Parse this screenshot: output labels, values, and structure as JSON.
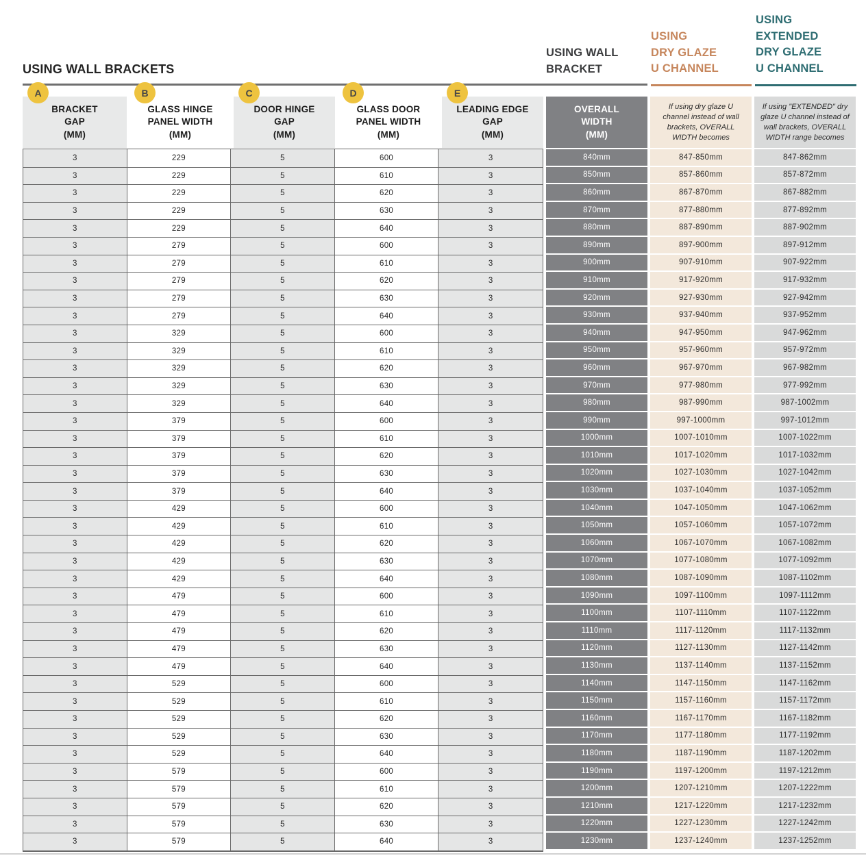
{
  "page": {
    "title": "USING WALL BRACKETS",
    "group_headings": {
      "wall_bracket": "USING WALL\nBRACKET",
      "dry_glaze": "USING\nDRY GLAZE\nU CHANNEL",
      "extended_dry_glaze": "USING\nEXTENDED\nDRY GLAZE\nU CHANNEL"
    }
  },
  "colors": {
    "dry_glaze_accent": "#c6865c",
    "extended_accent": "#2e6d72",
    "wall_bracket_heading": "#3c3d3f",
    "badge_yellow": "#eec33f",
    "overall_width_gray": "#808184",
    "dry_glaze_bg": "#f3e8db",
    "extended_bg": "#d9dada",
    "row_gray": "#e5e6e6",
    "header_gray": "#e8e9e9",
    "table_border": "#686868"
  },
  "table": {
    "columns": [
      {
        "badge": "A",
        "label": "BRACKET\nGAP\n(MM)"
      },
      {
        "badge": "B",
        "label": "GLASS HINGE\nPANEL WIDTH\n(MM)"
      },
      {
        "badge": "C",
        "label": "DOOR HINGE\nGAP\n(MM)"
      },
      {
        "badge": "D",
        "label": "GLASS DOOR\nPANEL WIDTH\n(MM)"
      },
      {
        "badge": "E",
        "label": "LEADING EDGE\nGAP\n(MM)"
      },
      {
        "label": "OVERALL\nWIDTH\n(MM)"
      },
      {
        "note": "If using dry glaze U channel instead of wall brackets, OVERALL WIDTH becomes"
      },
      {
        "note": "If using \"EXTENDED\" dry glaze U channel instead of wall brackets, OVERALL WIDTH range becomes"
      }
    ],
    "rows": [
      [
        3,
        229,
        5,
        600,
        3,
        "840mm",
        "847-850mm",
        "847-862mm"
      ],
      [
        3,
        229,
        5,
        610,
        3,
        "850mm",
        "857-860mm",
        "857-872mm"
      ],
      [
        3,
        229,
        5,
        620,
        3,
        "860mm",
        "867-870mm",
        "867-882mm"
      ],
      [
        3,
        229,
        5,
        630,
        3,
        "870mm",
        "877-880mm",
        "877-892mm"
      ],
      [
        3,
        229,
        5,
        640,
        3,
        "880mm",
        "887-890mm",
        "887-902mm"
      ],
      [
        3,
        279,
        5,
        600,
        3,
        "890mm",
        "897-900mm",
        "897-912mm"
      ],
      [
        3,
        279,
        5,
        610,
        3,
        "900mm",
        "907-910mm",
        "907-922mm"
      ],
      [
        3,
        279,
        5,
        620,
        3,
        "910mm",
        "917-920mm",
        "917-932mm"
      ],
      [
        3,
        279,
        5,
        630,
        3,
        "920mm",
        "927-930mm",
        "927-942mm"
      ],
      [
        3,
        279,
        5,
        640,
        3,
        "930mm",
        "937-940mm",
        "937-952mm"
      ],
      [
        3,
        329,
        5,
        600,
        3,
        "940mm",
        "947-950mm",
        "947-962mm"
      ],
      [
        3,
        329,
        5,
        610,
        3,
        "950mm",
        "957-960mm",
        "957-972mm"
      ],
      [
        3,
        329,
        5,
        620,
        3,
        "960mm",
        "967-970mm",
        "967-982mm"
      ],
      [
        3,
        329,
        5,
        630,
        3,
        "970mm",
        "977-980mm",
        "977-992mm"
      ],
      [
        3,
        329,
        5,
        640,
        3,
        "980mm",
        "987-990mm",
        "987-1002mm"
      ],
      [
        3,
        379,
        5,
        600,
        3,
        "990mm",
        "997-1000mm",
        "997-1012mm"
      ],
      [
        3,
        379,
        5,
        610,
        3,
        "1000mm",
        "1007-1010mm",
        "1007-1022mm"
      ],
      [
        3,
        379,
        5,
        620,
        3,
        "1010mm",
        "1017-1020mm",
        "1017-1032mm"
      ],
      [
        3,
        379,
        5,
        630,
        3,
        "1020mm",
        "1027-1030mm",
        "1027-1042mm"
      ],
      [
        3,
        379,
        5,
        640,
        3,
        "1030mm",
        "1037-1040mm",
        "1037-1052mm"
      ],
      [
        3,
        429,
        5,
        600,
        3,
        "1040mm",
        "1047-1050mm",
        "1047-1062mm"
      ],
      [
        3,
        429,
        5,
        610,
        3,
        "1050mm",
        "1057-1060mm",
        "1057-1072mm"
      ],
      [
        3,
        429,
        5,
        620,
        3,
        "1060mm",
        "1067-1070mm",
        "1067-1082mm"
      ],
      [
        3,
        429,
        5,
        630,
        3,
        "1070mm",
        "1077-1080mm",
        "1077-1092mm"
      ],
      [
        3,
        429,
        5,
        640,
        3,
        "1080mm",
        "1087-1090mm",
        "1087-1102mm"
      ],
      [
        3,
        479,
        5,
        600,
        3,
        "1090mm",
        "1097-1100mm",
        "1097-1112mm"
      ],
      [
        3,
        479,
        5,
        610,
        3,
        "1100mm",
        "1107-1110mm",
        "1107-1122mm"
      ],
      [
        3,
        479,
        5,
        620,
        3,
        "1110mm",
        "1117-1120mm",
        "1117-1132mm"
      ],
      [
        3,
        479,
        5,
        630,
        3,
        "1120mm",
        "1127-1130mm",
        "1127-1142mm"
      ],
      [
        3,
        479,
        5,
        640,
        3,
        "1130mm",
        "1137-1140mm",
        "1137-1152mm"
      ],
      [
        3,
        529,
        5,
        600,
        3,
        "1140mm",
        "1147-1150mm",
        "1147-1162mm"
      ],
      [
        3,
        529,
        5,
        610,
        3,
        "1150mm",
        "1157-1160mm",
        "1157-1172mm"
      ],
      [
        3,
        529,
        5,
        620,
        3,
        "1160mm",
        "1167-1170mm",
        "1167-1182mm"
      ],
      [
        3,
        529,
        5,
        630,
        3,
        "1170mm",
        "1177-1180mm",
        "1177-1192mm"
      ],
      [
        3,
        529,
        5,
        640,
        3,
        "1180mm",
        "1187-1190mm",
        "1187-1202mm"
      ],
      [
        3,
        579,
        5,
        600,
        3,
        "1190mm",
        "1197-1200mm",
        "1197-1212mm"
      ],
      [
        3,
        579,
        5,
        610,
        3,
        "1200mm",
        "1207-1210mm",
        "1207-1222mm"
      ],
      [
        3,
        579,
        5,
        620,
        3,
        "1210mm",
        "1217-1220mm",
        "1217-1232mm"
      ],
      [
        3,
        579,
        5,
        630,
        3,
        "1220mm",
        "1227-1230mm",
        "1227-1242mm"
      ],
      [
        3,
        579,
        5,
        640,
        3,
        "1230mm",
        "1237-1240mm",
        "1237-1252mm"
      ]
    ]
  }
}
